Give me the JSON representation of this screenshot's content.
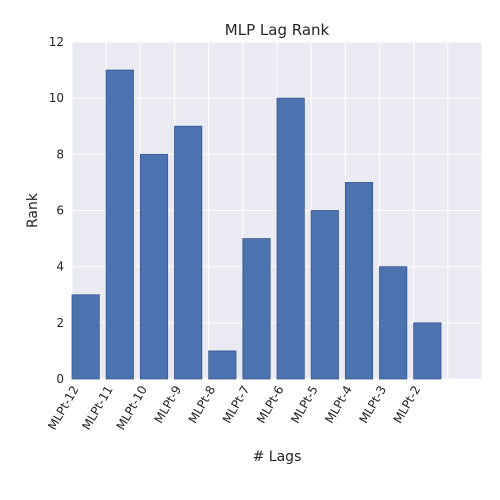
{
  "chart_data": {
    "type": "bar",
    "title": "MLP Lag Rank",
    "xlabel": "# Lags",
    "ylabel": "Rank",
    "categories": [
      "MLPt-12",
      "MLPt-11",
      "MLPt-10",
      "MLPt-9",
      "MLPt-8",
      "MLPt-7",
      "MLPt-6",
      "MLPt-5",
      "MLPt-4",
      "MLPt-3",
      "MLPt-2"
    ],
    "values": [
      3,
      11,
      8,
      9,
      1,
      5,
      10,
      6,
      7,
      4,
      2
    ],
    "ylim": [
      0,
      12
    ],
    "yticks": [
      0,
      2,
      4,
      6,
      8,
      10,
      12
    ],
    "grid": true,
    "colors": {
      "bar": "#4c72b0",
      "bar_edge": "#3b5a8c",
      "plot_bg": "#eaeaf2",
      "grid": "#ffffff"
    }
  }
}
